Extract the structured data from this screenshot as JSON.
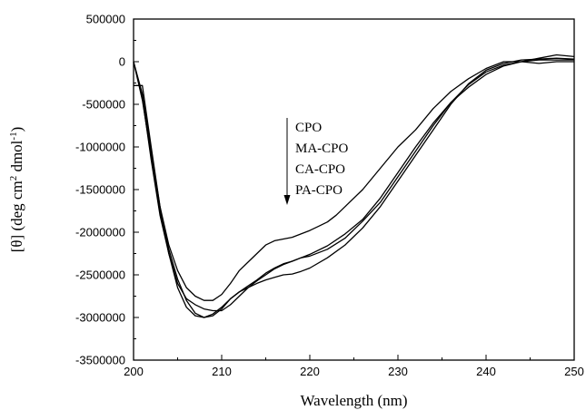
{
  "chart_data": {
    "type": "line",
    "title": "",
    "xlabel": "Wavelength (nm)",
    "ylabel_parts": {
      "prefix": "[θ] (deg cm",
      "sup1": "2",
      "middle": " dmol",
      "sup2": "-1",
      "suffix": ")"
    },
    "xlim": [
      200,
      250
    ],
    "ylim": [
      -3500000,
      500000
    ],
    "xticks": [
      200,
      210,
      220,
      230,
      240,
      250
    ],
    "yticks": [
      500000,
      0,
      -500000,
      -1000000,
      -1500000,
      -2000000,
      -2500000,
      -3000000,
      -3500000
    ],
    "ytick_labels": [
      "500000",
      "0",
      "-500000",
      "-1000000",
      "-1500000",
      "-2000000",
      "-2500000",
      "-3000000",
      "-3500000"
    ],
    "grid": false,
    "legend_labels": [
      "CPO",
      "MA-CPO",
      "CA-CPO",
      "PA-CPO"
    ],
    "legend_arrow": "down",
    "series": [
      {
        "x": [
          200,
          201,
          202,
          203,
          204,
          205,
          206,
          207,
          208,
          209,
          210,
          211,
          212,
          213,
          214,
          215,
          216,
          217,
          218,
          219,
          220,
          221,
          222,
          223,
          224,
          226,
          228,
          230,
          232,
          234,
          236,
          238,
          240,
          242,
          244,
          246,
          248,
          250
        ],
        "values": [
          -280000,
          -280000,
          -1000000,
          -1700000,
          -2150000,
          -2450000,
          -2650000,
          -2750000,
          -2800000,
          -2800000,
          -2730000,
          -2600000,
          -2450000,
          -2350000,
          -2250000,
          -2150000,
          -2100000,
          -2080000,
          -2060000,
          -2020000,
          -1980000,
          -1930000,
          -1880000,
          -1800000,
          -1700000,
          -1500000,
          -1250000,
          -1000000,
          -800000,
          -550000,
          -350000,
          -200000,
          -80000,
          0,
          0,
          -20000,
          0,
          0
        ]
      },
      {
        "x": [
          200,
          201,
          202,
          203,
          204,
          205,
          206,
          207,
          208,
          209,
          210,
          211,
          212,
          213,
          214,
          215,
          216,
          217,
          218,
          219,
          220,
          222,
          224,
          226,
          228,
          230,
          232,
          234,
          236,
          238,
          240,
          242,
          244,
          246,
          248,
          250
        ],
        "values": [
          0,
          -450000,
          -1100000,
          -1750000,
          -2200000,
          -2550000,
          -2800000,
          -2950000,
          -3000000,
          -2980000,
          -2900000,
          -2780000,
          -2700000,
          -2650000,
          -2600000,
          -2560000,
          -2530000,
          -2500000,
          -2490000,
          -2460000,
          -2420000,
          -2300000,
          -2150000,
          -1950000,
          -1700000,
          -1400000,
          -1100000,
          -800000,
          -500000,
          -260000,
          -100000,
          -20000,
          20000,
          30000,
          40000,
          30000
        ]
      },
      {
        "x": [
          200,
          201,
          202,
          203,
          204,
          205,
          206,
          207,
          208,
          209,
          210,
          211,
          212,
          213,
          214,
          215,
          216,
          217,
          218,
          219,
          220,
          222,
          224,
          226,
          228,
          230,
          232,
          234,
          236,
          238,
          240,
          242,
          244,
          246,
          248,
          250
        ],
        "values": [
          0,
          -380000,
          -1050000,
          -1700000,
          -2250000,
          -2650000,
          -2880000,
          -2980000,
          -3000000,
          -2960000,
          -2880000,
          -2780000,
          -2700000,
          -2630000,
          -2560000,
          -2480000,
          -2420000,
          -2370000,
          -2340000,
          -2300000,
          -2260000,
          -2160000,
          -2020000,
          -1850000,
          -1600000,
          -1300000,
          -1000000,
          -720000,
          -480000,
          -300000,
          -150000,
          -50000,
          0,
          20000,
          20000,
          20000
        ]
      },
      {
        "x": [
          200,
          201,
          202,
          203,
          204,
          205,
          206,
          207,
          208,
          209,
          210,
          211,
          212,
          213,
          214,
          215,
          216,
          217,
          218,
          219,
          220,
          222,
          224,
          226,
          228,
          230,
          232,
          234,
          236,
          238,
          240,
          242,
          244,
          246,
          248,
          250
        ],
        "values": [
          0,
          -420000,
          -1150000,
          -1800000,
          -2250000,
          -2600000,
          -2780000,
          -2850000,
          -2900000,
          -2920000,
          -2920000,
          -2850000,
          -2750000,
          -2650000,
          -2570000,
          -2500000,
          -2430000,
          -2380000,
          -2340000,
          -2300000,
          -2280000,
          -2200000,
          -2070000,
          -1870000,
          -1650000,
          -1350000,
          -1050000,
          -750000,
          -480000,
          -270000,
          -120000,
          -40000,
          0,
          40000,
          80000,
          60000
        ]
      }
    ]
  }
}
